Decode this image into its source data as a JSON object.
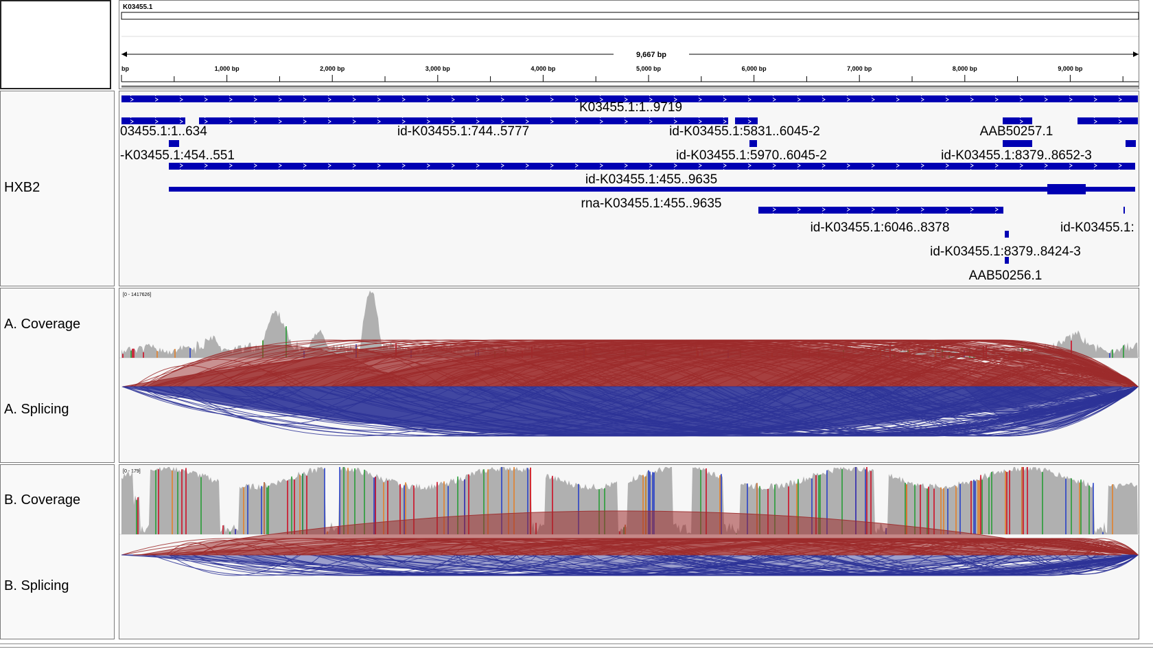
{
  "header": {
    "chrom": "K03455.1",
    "span": "9,667 bp",
    "ticks": [
      "bp",
      "1,000 bp",
      "2,000 bp",
      "3,000 bp",
      "4,000 bp",
      "5,000 bp",
      "6,000 bp",
      "7,000 bp",
      "8,000 bp",
      "9,000 bp"
    ]
  },
  "tracks": {
    "annotation": "HXB2",
    "a_coverage": "A. Coverage",
    "a_splicing": "A. Splicing",
    "b_coverage": "B. Coverage",
    "b_splicing": "B. Splicing",
    "a_range": "[0 - 1417626]",
    "b_range": "[0 - 179]"
  },
  "features": [
    {
      "label": "K03455.1:1..9719"
    },
    {
      "label": "03455.1:1..634"
    },
    {
      "label": "id-K03455.1:744..5777"
    },
    {
      "label": "id-K03455.1:5831..6045-2"
    },
    {
      "label": "AAB50257.1"
    },
    {
      "label": "-K03455.1:454..551"
    },
    {
      "label": "id-K03455.1:5970..6045-2"
    },
    {
      "label": "id-K03455.1:8379..8652-3"
    },
    {
      "label": "id-K03455.1:455..9635"
    },
    {
      "label": "rna-K03455.1:455..9635"
    },
    {
      "label": "id-K03455.1:6046..8378"
    },
    {
      "label": "id-K03455.1:"
    },
    {
      "label": "id-K03455.1:8379..8424-3"
    },
    {
      "label": "AAB50256.1"
    }
  ],
  "colors": {
    "feature": "#0000b3",
    "coverage": "#b0b0b0",
    "junction_plus": "#9c2b2b",
    "junction_minus": "#2d3397"
  }
}
